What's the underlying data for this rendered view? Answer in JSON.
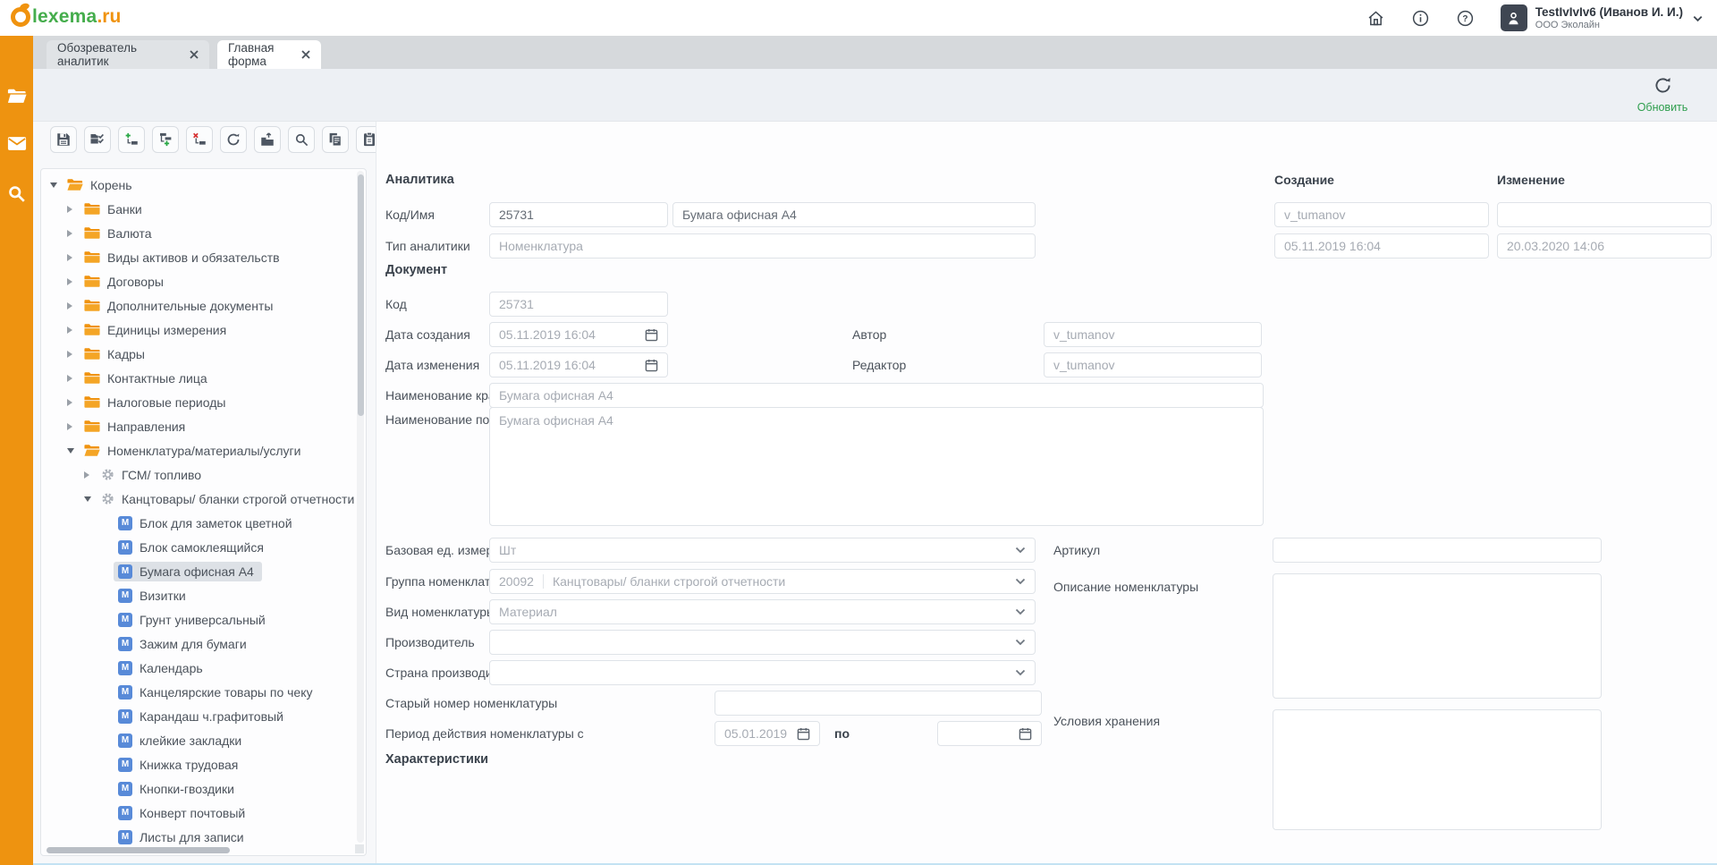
{
  "header": {
    "logo_text": "lexema",
    "logo_suffix": ".ru",
    "user": {
      "name": "TestIvIvIv6 (Иванов И. И.)",
      "org": "ООО Эколайн"
    }
  },
  "tabs": [
    {
      "label": "Обозреватель аналитик",
      "active": false
    },
    {
      "label": "Главная форма",
      "active": true
    }
  ],
  "refresh_label": "Обновить",
  "rail_icons": [
    "folder-icon",
    "mail-icon",
    "search-icon"
  ],
  "toolbar": {
    "buttons": [
      {
        "name": "save"
      },
      {
        "name": "confirm-tree"
      },
      {
        "name": "add-node"
      },
      {
        "name": "add-child-node"
      },
      {
        "name": "delete-node"
      },
      {
        "name": "refresh-tree"
      },
      {
        "name": "import-node"
      },
      {
        "name": "search"
      },
      {
        "name": "copy"
      },
      {
        "name": "paste"
      }
    ]
  },
  "tree": {
    "items": [
      {
        "label": "Корень",
        "level": 0,
        "icon": "folder-open",
        "caret": "down",
        "selected": false
      },
      {
        "label": "Банки",
        "level": 1,
        "icon": "folder",
        "caret": "right",
        "selected": false
      },
      {
        "label": "Валюта",
        "level": 1,
        "icon": "folder",
        "caret": "right",
        "selected": false
      },
      {
        "label": "Виды активов и обязательств",
        "level": 1,
        "icon": "folder",
        "caret": "right",
        "selected": false
      },
      {
        "label": "Договоры",
        "level": 1,
        "icon": "folder",
        "caret": "right",
        "selected": false
      },
      {
        "label": "Дополнительные документы",
        "level": 1,
        "icon": "folder",
        "caret": "right",
        "selected": false
      },
      {
        "label": "Единицы измерения",
        "level": 1,
        "icon": "folder",
        "caret": "right",
        "selected": false
      },
      {
        "label": "Кадры",
        "level": 1,
        "icon": "folder",
        "caret": "right",
        "selected": false
      },
      {
        "label": "Контактные лица",
        "level": 1,
        "icon": "folder",
        "caret": "right",
        "selected": false
      },
      {
        "label": "Налоговые периоды",
        "level": 1,
        "icon": "folder",
        "caret": "right",
        "selected": false
      },
      {
        "label": "Направления",
        "level": 1,
        "icon": "folder",
        "caret": "right",
        "selected": false
      },
      {
        "label": "Номенклатура/материалы/услуги",
        "level": 1,
        "icon": "folder-open",
        "caret": "down",
        "selected": false
      },
      {
        "label": "ГСМ/ топливо",
        "level": 2,
        "icon": "gear",
        "caret": "right",
        "selected": false
      },
      {
        "label": "Канцтовары/ бланки строгой отчетности",
        "level": 2,
        "icon": "gear",
        "caret": "down",
        "selected": false
      },
      {
        "label": "Блок для заметок цветной",
        "level": 3,
        "icon": "item",
        "caret": null,
        "selected": false
      },
      {
        "label": "Блок самоклеящийся",
        "level": 3,
        "icon": "item",
        "caret": null,
        "selected": false
      },
      {
        "label": "Бумага офисная А4",
        "level": 3,
        "icon": "item",
        "caret": null,
        "selected": true
      },
      {
        "label": "Визитки",
        "level": 3,
        "icon": "item",
        "caret": null,
        "selected": false
      },
      {
        "label": "Грунт универсальный",
        "level": 3,
        "icon": "item",
        "caret": null,
        "selected": false
      },
      {
        "label": "Зажим для бумаги",
        "level": 3,
        "icon": "item",
        "caret": null,
        "selected": false
      },
      {
        "label": "Календарь",
        "level": 3,
        "icon": "item",
        "caret": null,
        "selected": false
      },
      {
        "label": "Канцелярские товары по чеку",
        "level": 3,
        "icon": "item",
        "caret": null,
        "selected": false
      },
      {
        "label": "Карандаш ч.графитовый",
        "level": 3,
        "icon": "item",
        "caret": null,
        "selected": false
      },
      {
        "label": "клейкие закладки",
        "level": 3,
        "icon": "item",
        "caret": null,
        "selected": false
      },
      {
        "label": "Книжка трудовая",
        "level": 3,
        "icon": "item",
        "caret": null,
        "selected": false
      },
      {
        "label": "Кнопки-гвоздики",
        "level": 3,
        "icon": "item",
        "caret": null,
        "selected": false
      },
      {
        "label": "Конверт почтовый",
        "level": 3,
        "icon": "item",
        "caret": null,
        "selected": false
      },
      {
        "label": "Листы для записи",
        "level": 3,
        "icon": "item",
        "caret": null,
        "selected": false
      }
    ]
  },
  "form": {
    "analytics_section": "Аналитика",
    "created_header": "Создание",
    "modified_header": "Изменение",
    "code_name_label": "Код/Имя",
    "code_value": "25731",
    "name_value": "Бумага офисная А4",
    "creator_value": "v_tumanov",
    "modified_by_value": "",
    "type_label": "Тип аналитики",
    "type_value": "Номенклатура",
    "created_at_value": "05.11.2019 16:04",
    "modified_at_value": "20.03.2020 14:06",
    "document_section": "Документ",
    "doc_code_label": "Код",
    "doc_code_value": "25731",
    "created_date_label": "Дата создания",
    "created_date_value": "05.11.2019 16:04",
    "author_label": "Автор",
    "author_value": "v_tumanov",
    "modified_date_label": "Дата изменения",
    "modified_date_value": "05.11.2019 16:04",
    "editor_label": "Редактор",
    "editor_value": "v_tumanov",
    "short_name_label": "Наименование краткое*",
    "short_name_value": "Бумага офисная А4",
    "full_name_label": "Наименование полное*",
    "full_name_value": "Бумага офисная А4",
    "base_unit_label": "Базовая ед. измерения*",
    "base_unit_value": "Шт",
    "article_label": "Артикул",
    "article_value": "",
    "group_label": "Группа номенклатуры*",
    "group_code": "20092",
    "group_value": "Канцтовары/ бланки строгой отчетности",
    "description_label": "Описание номенклатуры",
    "description_value": "",
    "kind_label": "Вид номенклатуры*",
    "kind_value": "Материал",
    "manufacturer_label": "Производитель",
    "manufacturer_value": "",
    "country_label": "Страна производителя",
    "country_value": "",
    "storage_label": "Условия хранения",
    "storage_value": "",
    "old_number_label": "Старый номер номенклатуры",
    "old_number_value": "",
    "period_label": "Период действия номенклатуры с",
    "period_from_value": "05.01.2019",
    "period_to_label": "по",
    "period_to_value": "",
    "characteristics_section": "Характеристики"
  },
  "colors": {
    "accent_orange": "#ee9310",
    "logo_green": "#45ad4c",
    "refresh_green": "#2f9e4e",
    "item_blue": "#588ad8",
    "dark_slate": "#3e4751"
  }
}
